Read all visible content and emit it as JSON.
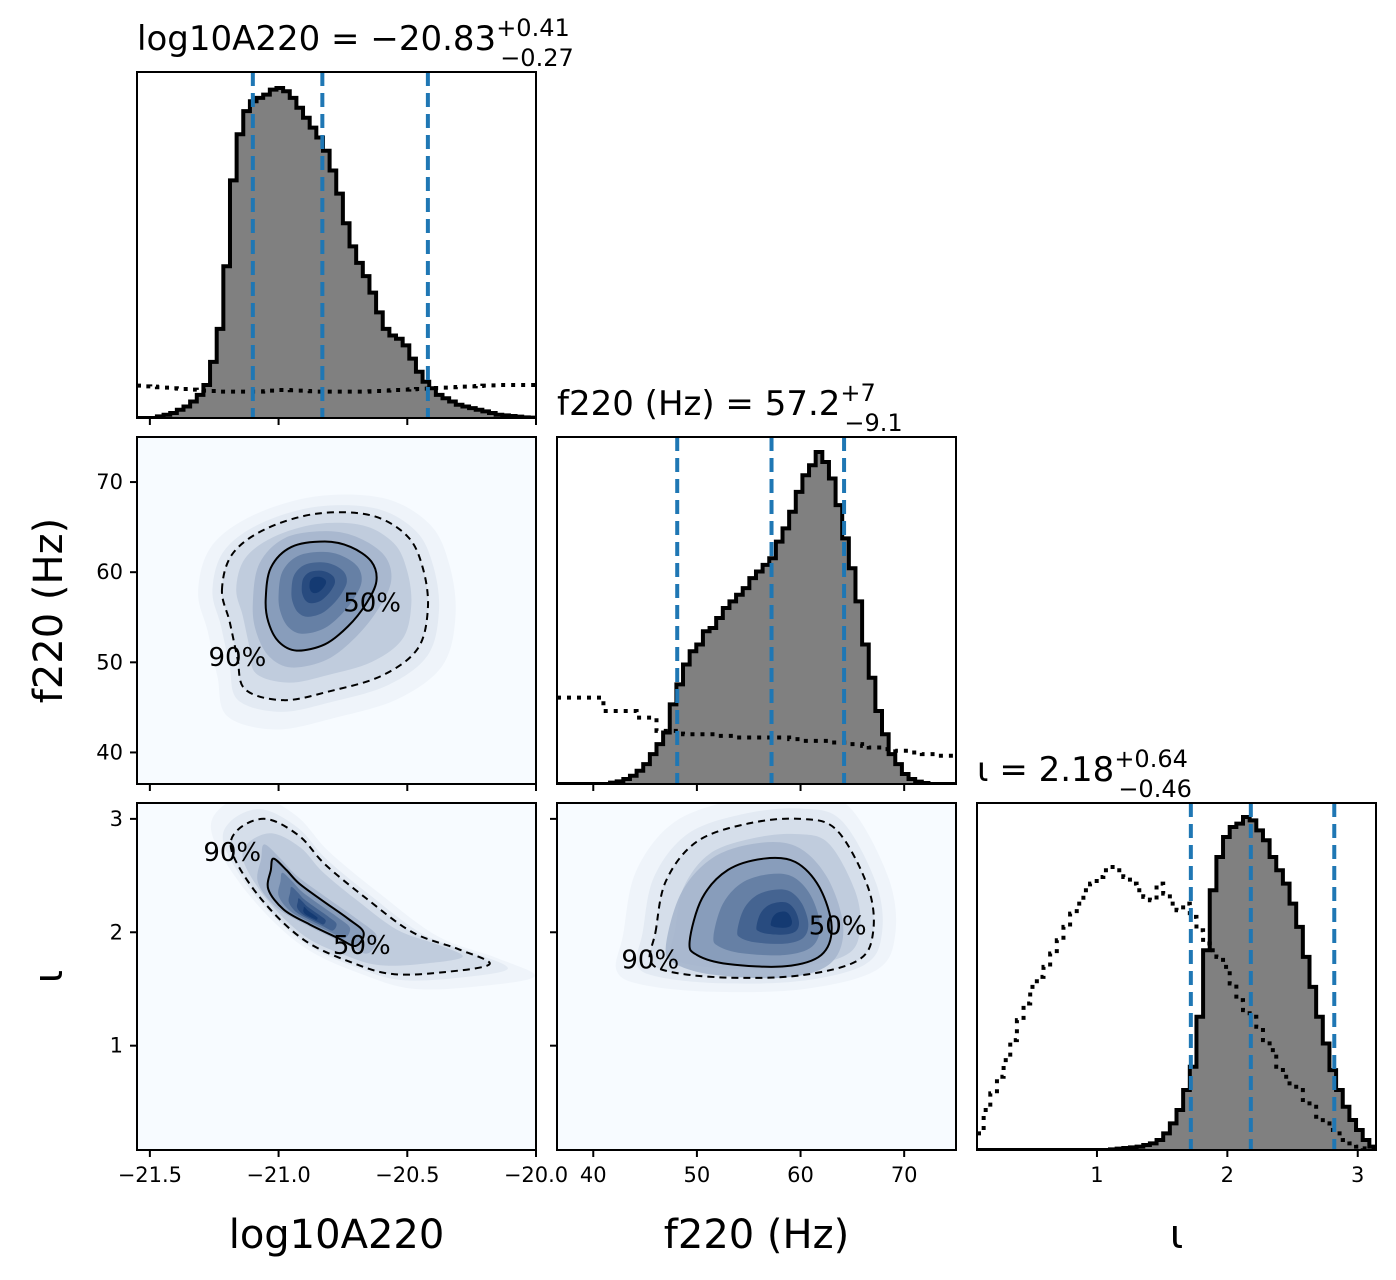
{
  "chart_data": {
    "type": "corner",
    "parameters": [
      {
        "key": "log10A220",
        "axis_label": "log10A220",
        "title": {
          "lhs": "log10A220",
          "value": "−20.83",
          "plus": "+0.41",
          "minus": "−0.27"
        },
        "range": [
          -21.55,
          -20.0
        ],
        "ticks": [
          -21.5,
          -21.0,
          -20.5,
          -20.0
        ],
        "tick_labels": [
          "−21.5",
          "−21.0",
          "−20.5",
          "−20.0"
        ],
        "quantiles": [
          -21.1,
          -20.83,
          -20.42
        ]
      },
      {
        "key": "f220",
        "axis_label": "f220 (Hz)",
        "title": {
          "lhs": "f220 (Hz)",
          "value": "57.2",
          "plus": "+7",
          "minus": "−9.1"
        },
        "range": [
          36.5,
          75.0
        ],
        "ticks": [
          40,
          50,
          60,
          70
        ],
        "tick_labels": [
          "40",
          "50",
          "60",
          "70"
        ],
        "quantiles": [
          48.1,
          57.2,
          64.2
        ]
      },
      {
        "key": "iota",
        "axis_label": "ι",
        "title": {
          "lhs": "ι",
          "value": "2.18",
          "plus": "+0.64",
          "minus": "−0.46"
        },
        "range": [
          0.08,
          3.14
        ],
        "ticks": [
          1,
          2,
          3
        ],
        "tick_labels": [
          "1",
          "2",
          "3"
        ],
        "quantiles": [
          1.72,
          2.18,
          2.82
        ]
      }
    ],
    "histograms": {
      "log10A220": {
        "bin_start": -21.55,
        "bin_width": 0.0258,
        "posterior": [
          0,
          0,
          0,
          0.5,
          1,
          1.5,
          2.5,
          3.5,
          5,
          7,
          10,
          17,
          27,
          46,
          72,
          86,
          93,
          96,
          97,
          98,
          99.5,
          100,
          99,
          97,
          94,
          91,
          88,
          85,
          81,
          75,
          68,
          59,
          52,
          47,
          43,
          38,
          32,
          27,
          25,
          24,
          22,
          18,
          14,
          11,
          9,
          7,
          6,
          5,
          4,
          3.5,
          3,
          2.5,
          2,
          1.5,
          1,
          0.8,
          0.6,
          0.4,
          0.2,
          0.1
        ],
        "prior": [
          9.8,
          9.6,
          9.5,
          9.3,
          9.2,
          9,
          8.9,
          8.8,
          8.6,
          8.5,
          8.3,
          8.2,
          8,
          8,
          8,
          8,
          8,
          8,
          8,
          8.1,
          8.3,
          8.5,
          8.5,
          8.4,
          8.3,
          8.2,
          8.1,
          8,
          8,
          8,
          8,
          8,
          8,
          8,
          8,
          8.1,
          8.2,
          8.3,
          8.4,
          8.5,
          8.6,
          8.7,
          8.8,
          8.9,
          9,
          9.1,
          9.2,
          9.3,
          9.4,
          9.5,
          9.6,
          9.7,
          9.8,
          9.9,
          10,
          10,
          10,
          10,
          10,
          10
        ]
      },
      "f220": {
        "bin_start": 36.5,
        "bin_width": 0.64,
        "posterior": [
          0,
          0,
          0,
          0,
          0,
          0,
          0,
          0,
          0.4,
          0.8,
          1.5,
          2.5,
          4,
          6,
          9,
          12,
          15.5,
          24,
          30,
          36,
          40,
          42,
          46,
          47,
          50,
          53,
          55,
          57,
          59,
          62,
          64,
          66,
          68,
          73,
          77,
          82,
          88,
          93,
          96,
          100,
          97,
          92,
          84,
          74,
          65,
          55,
          42,
          32,
          22,
          15,
          9,
          6,
          3,
          1.5,
          0.7,
          0.3,
          0,
          0,
          0,
          0
        ],
        "prior": [
          26,
          26,
          26,
          26,
          26,
          26,
          26,
          22,
          22,
          22,
          22,
          22,
          20,
          20,
          20,
          16,
          16,
          16,
          16,
          15,
          15,
          15,
          15,
          15,
          14.5,
          14.5,
          14.5,
          14,
          14,
          14,
          14,
          14,
          14,
          14,
          14,
          13.5,
          13.5,
          13,
          13,
          13,
          13,
          12.5,
          12.5,
          12.5,
          12,
          12,
          11.5,
          11,
          11,
          10.5,
          10.5,
          10,
          10,
          9.5,
          9.5,
          9,
          9,
          8.5,
          8.5,
          8.5
        ]
      },
      "iota": {
        "bin_start": 0.08,
        "bin_width": 0.051,
        "posterior": [
          0,
          0,
          0,
          0,
          0,
          0,
          0,
          0,
          0,
          0,
          0,
          0,
          0,
          0,
          0,
          0,
          0,
          0,
          0,
          0,
          0.2,
          0.4,
          0.6,
          0.8,
          1,
          1.5,
          2,
          3,
          5,
          8,
          12,
          18,
          25,
          40,
          60,
          78,
          88,
          94,
          97,
          98,
          100,
          99,
          96,
          93,
          88,
          84,
          80,
          74,
          67,
          58,
          49,
          40,
          32,
          24,
          18,
          13,
          9,
          6,
          3,
          1
        ],
        "prior": [
          5,
          12,
          17,
          22,
          27,
          33,
          39,
          44,
          49,
          52,
          55,
          59,
          63,
          67,
          71,
          74,
          78,
          80,
          82,
          84,
          85,
          84,
          82,
          80,
          78,
          76,
          75,
          80,
          77,
          74,
          72,
          74,
          70,
          66,
          62,
          60,
          58,
          55,
          50,
          45,
          42,
          40,
          37,
          33,
          30,
          25,
          22,
          20,
          18,
          15,
          13,
          10,
          8,
          6,
          5,
          3,
          2,
          1,
          0.5,
          0.2
        ]
      }
    },
    "joint": [
      {
        "x": "log10A220",
        "y": "f220",
        "peak": [
          -20.85,
          58.8
        ],
        "labels": [
          "90%",
          "50%"
        ],
        "contour_50": [
          [
            -21.05,
            57
          ],
          [
            -21.03,
            60.5
          ],
          [
            -20.95,
            62.8
          ],
          [
            -20.82,
            63.4
          ],
          [
            -20.72,
            62.8
          ],
          [
            -20.64,
            61.2
          ],
          [
            -20.62,
            59
          ],
          [
            -20.66,
            56.5
          ],
          [
            -20.73,
            54
          ],
          [
            -20.82,
            52
          ],
          [
            -20.93,
            51.3
          ],
          [
            -21.0,
            52.3
          ],
          [
            -21.04,
            54.5
          ]
        ],
        "contour_90": [
          [
            -21.22,
            58
          ],
          [
            -21.18,
            62
          ],
          [
            -21.05,
            64.8
          ],
          [
            -20.85,
            66.5
          ],
          [
            -20.64,
            66.3
          ],
          [
            -20.5,
            64
          ],
          [
            -20.44,
            60.5
          ],
          [
            -20.42,
            56
          ],
          [
            -20.46,
            51.5
          ],
          [
            -20.6,
            48.5
          ],
          [
            -20.8,
            46.8
          ],
          [
            -20.98,
            45.8
          ],
          [
            -21.13,
            47
          ],
          [
            -21.16,
            50.5
          ],
          [
            -21.19,
            54.5
          ]
        ]
      },
      {
        "x": "log10A220",
        "y": "iota",
        "peak": [
          -20.88,
          2.15
        ],
        "labels": [
          "90%",
          "50%"
        ],
        "contour_50": [
          [
            -21.03,
            2.55
          ],
          [
            -21.02,
            2.65
          ],
          [
            -20.97,
            2.55
          ],
          [
            -20.92,
            2.43
          ],
          [
            -20.83,
            2.28
          ],
          [
            -20.73,
            2.12
          ],
          [
            -20.67,
            2.0
          ],
          [
            -20.7,
            1.88
          ],
          [
            -20.77,
            1.95
          ],
          [
            -20.88,
            2.07
          ],
          [
            -20.98,
            2.2
          ],
          [
            -21.04,
            2.38
          ]
        ],
        "contour_90": [
          [
            -21.16,
            2.9
          ],
          [
            -21.05,
            3.0
          ],
          [
            -20.92,
            2.85
          ],
          [
            -20.82,
            2.6
          ],
          [
            -20.66,
            2.3
          ],
          [
            -20.48,
            2.0
          ],
          [
            -20.3,
            1.85
          ],
          [
            -20.18,
            1.72
          ],
          [
            -20.35,
            1.65
          ],
          [
            -20.55,
            1.63
          ],
          [
            -20.7,
            1.72
          ],
          [
            -20.9,
            1.93
          ],
          [
            -21.07,
            2.3
          ],
          [
            -21.18,
            2.7
          ]
        ]
      },
      {
        "x": "f220",
        "y": "iota",
        "peak": [
          58.5,
          2.1
        ],
        "labels": [
          "90%",
          "50%"
        ],
        "contour_50": [
          [
            49.3,
            1.92
          ],
          [
            50.5,
            2.3
          ],
          [
            53,
            2.55
          ],
          [
            56.5,
            2.65
          ],
          [
            59.5,
            2.62
          ],
          [
            61.8,
            2.4
          ],
          [
            63,
            2.05
          ],
          [
            62,
            1.8
          ],
          [
            58.5,
            1.7
          ],
          [
            53,
            1.72
          ],
          [
            50,
            1.8
          ]
        ],
        "contour_90": [
          [
            46,
            2.0
          ],
          [
            47,
            2.45
          ],
          [
            50,
            2.8
          ],
          [
            55,
            2.96
          ],
          [
            60,
            3.0
          ],
          [
            63.5,
            2.9
          ],
          [
            66.5,
            2.4
          ],
          [
            67,
            2.0
          ],
          [
            65.5,
            1.75
          ],
          [
            60,
            1.62
          ],
          [
            53,
            1.6
          ],
          [
            47.5,
            1.65
          ],
          [
            45.5,
            1.75
          ]
        ]
      }
    ],
    "colors": {
      "posterior_fill": "#808080",
      "posterior_edge": "#000000",
      "quantile_line": "#1f77b4",
      "prior_line": "#000000",
      "density_low": "#f7fbff",
      "density_high": "#08306b"
    }
  }
}
